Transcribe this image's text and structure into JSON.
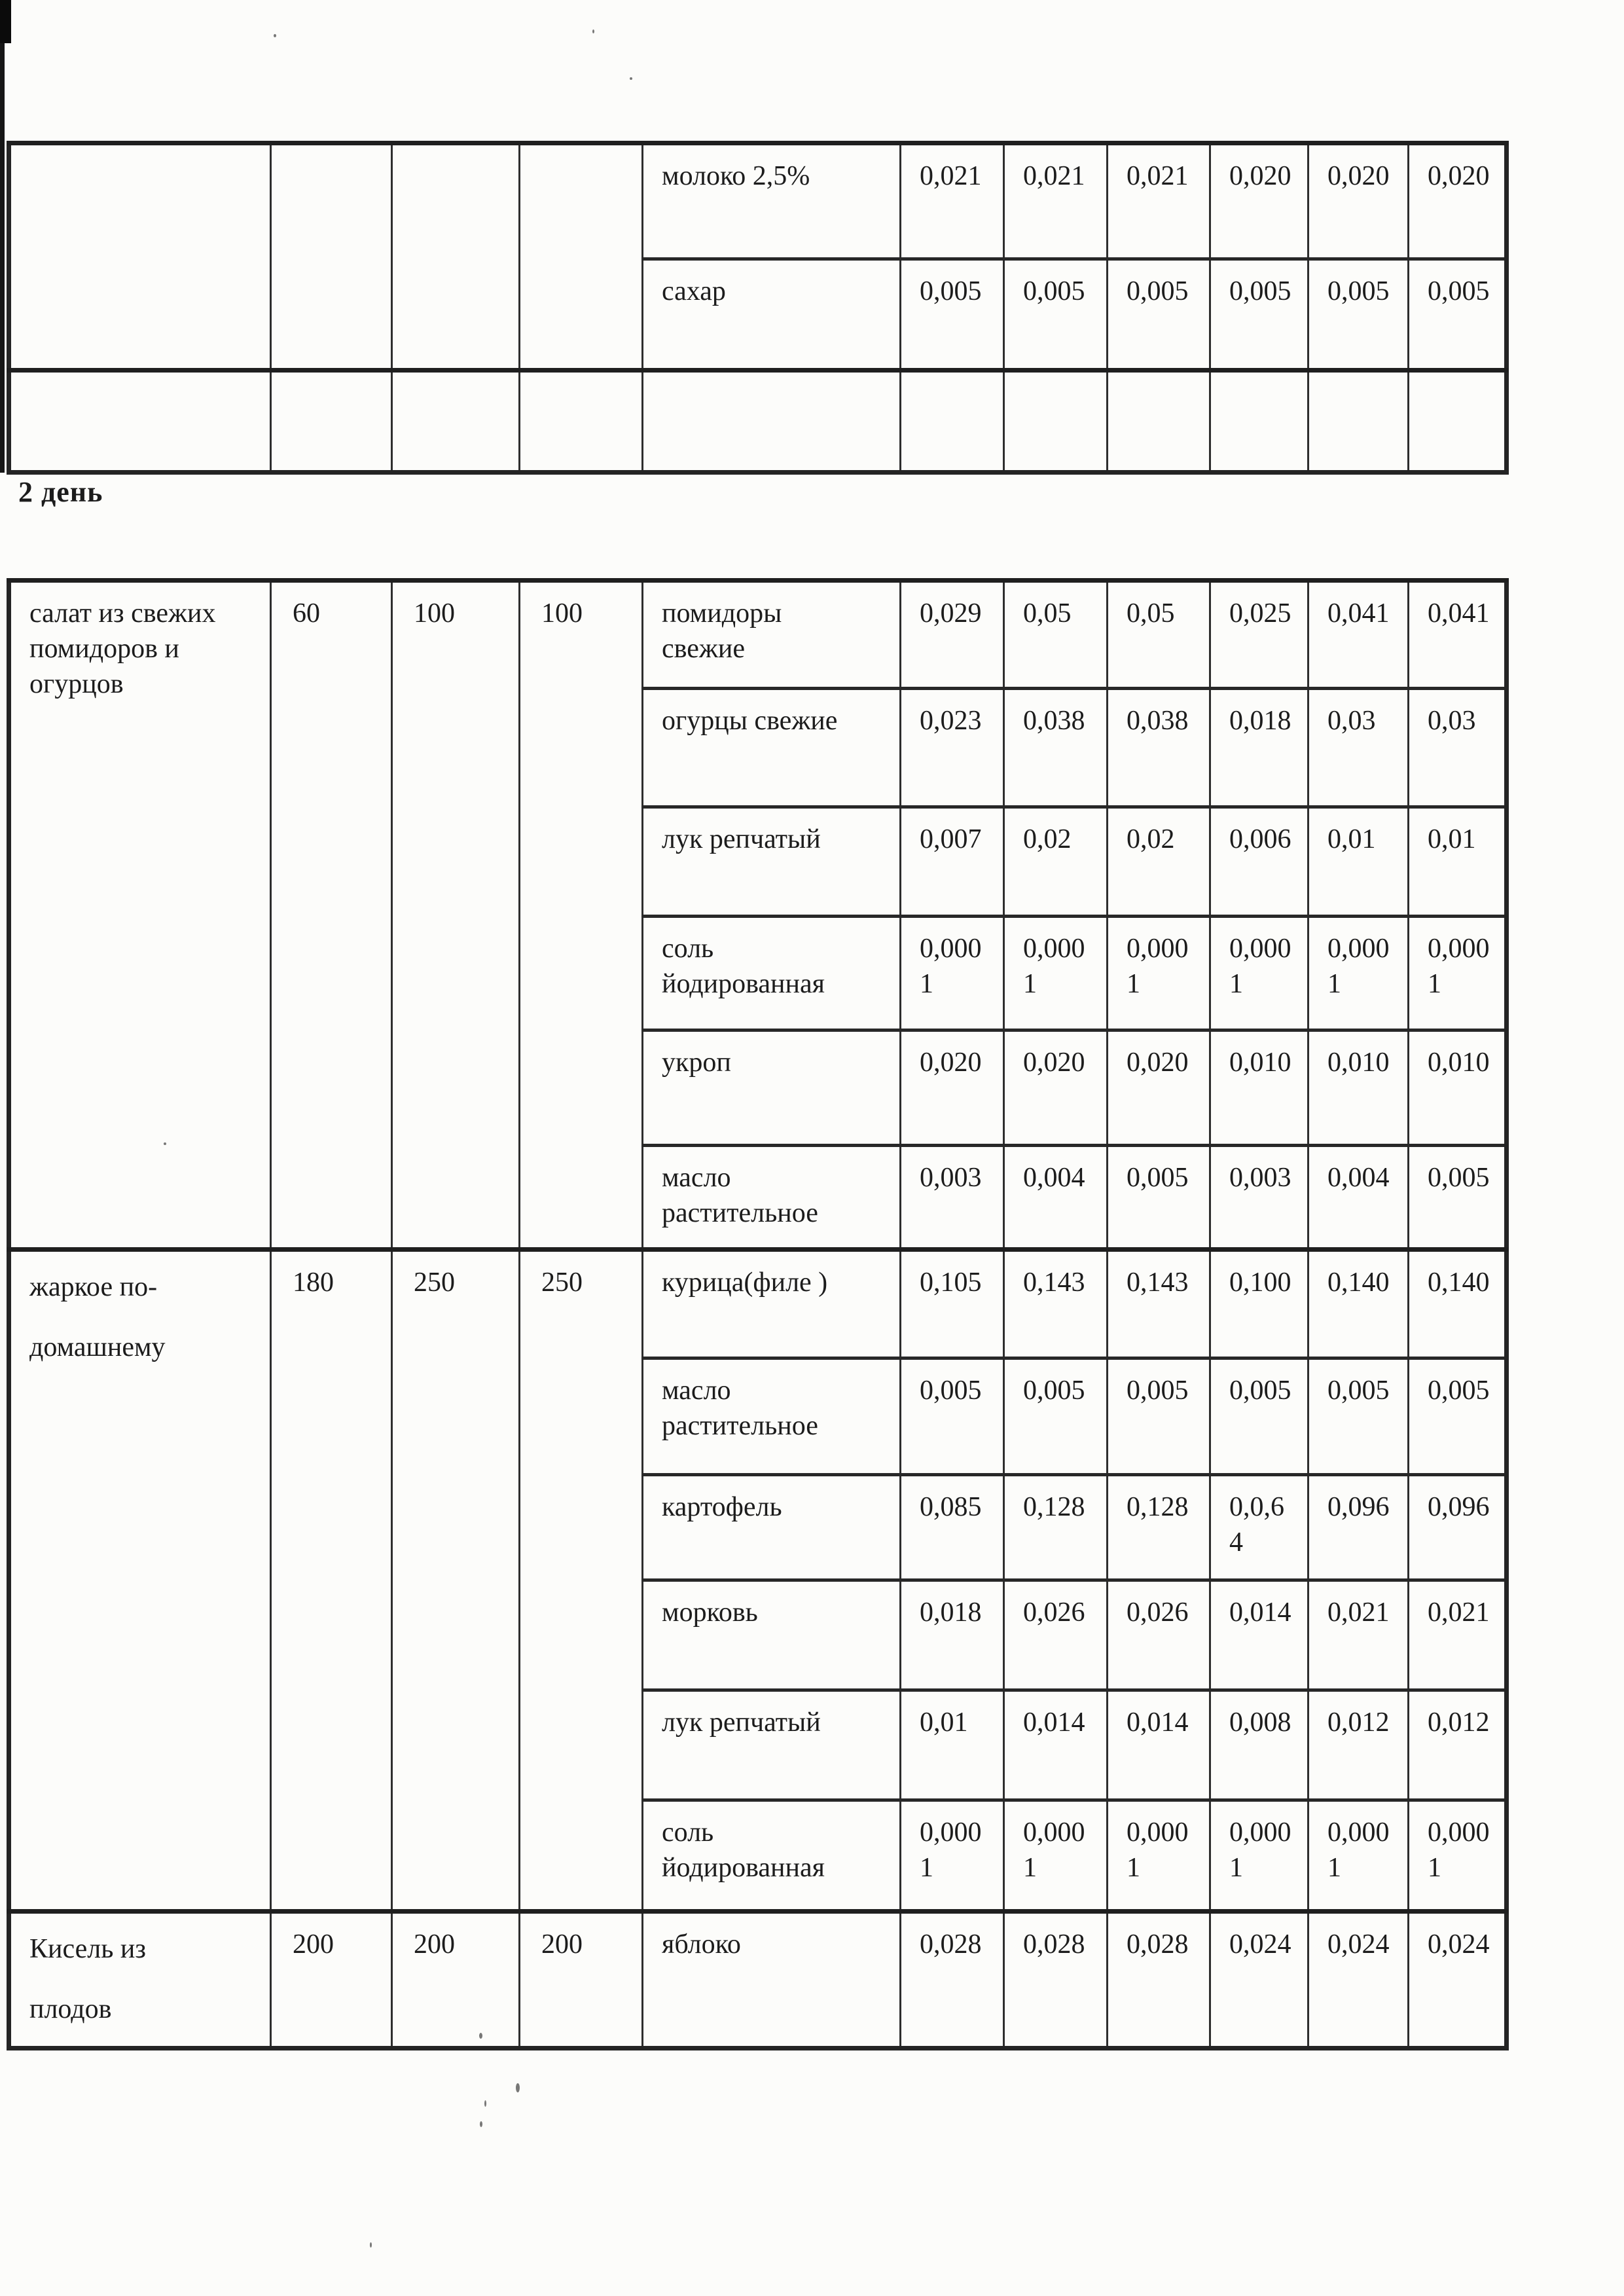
{
  "day_label": "2 день",
  "continuation_table": {
    "dishes": [
      {
        "name": "",
        "portions": [
          "",
          "",
          ""
        ],
        "ingredients": [
          {
            "name": "молоко 2,5%",
            "values": [
              "0,021",
              "0,021",
              "0,021",
              "0,020",
              "0,020",
              "0,020"
            ]
          },
          {
            "name": "сахар",
            "values": [
              "0,005",
              "0,005",
              "0,005",
              "0,005",
              "0,005",
              "0,005"
            ]
          }
        ]
      },
      {
        "name": "",
        "portions": [
          "",
          "",
          ""
        ],
        "ingredients": [
          {
            "name": "",
            "values": [
              "",
              "",
              "",
              "",
              "",
              ""
            ]
          }
        ]
      }
    ]
  },
  "day2_table": {
    "dishes": [
      {
        "name": "салат из свежих помидоров и огурцов",
        "portions": [
          "60",
          "100",
          "100"
        ],
        "ingredients": [
          {
            "name": "помидоры свежие",
            "values": [
              "0,029",
              "0,05",
              "0,05",
              "0,025",
              "0,041",
              "0,041"
            ]
          },
          {
            "name": "огурцы свежие",
            "values": [
              "0,023",
              "0,038",
              "0,038",
              "0,018",
              "0,03",
              "0,03"
            ]
          },
          {
            "name": "лук репчатый",
            "values": [
              "0,007",
              "0,02",
              "0,02",
              "0,006",
              "0,01",
              "0,01"
            ]
          },
          {
            "name": "соль йодированная",
            "values": [
              "0,0001",
              "0,0001",
              "0,0001",
              "0,0001",
              "0,0001",
              "0,0001"
            ]
          },
          {
            "name": "укроп",
            "values": [
              "0,020",
              "0,020",
              "0,020",
              "0,010",
              "0,010",
              "0,010"
            ]
          },
          {
            "name": "масло растительное",
            "values": [
              "0,003",
              "0,004",
              "0,005",
              "0,003",
              "0,004",
              "0,005"
            ]
          }
        ]
      },
      {
        "name": "жаркое по-домашнему",
        "portions": [
          "180",
          "250",
          "250"
        ],
        "ingredients": [
          {
            "name": "курица(филе )",
            "values": [
              "0,105",
              "0,143",
              "0,143",
              "0,100",
              "0,140",
              "0,140"
            ]
          },
          {
            "name": "масло растительное",
            "values": [
              "0,005",
              "0,005",
              "0,005",
              "0,005",
              "0,005",
              "0,005"
            ]
          },
          {
            "name": "картофель",
            "values": [
              "0,085",
              "0,128",
              "0,128",
              "0,0,64",
              "0,096",
              "0,096"
            ]
          },
          {
            "name": "морковь",
            "values": [
              "0,018",
              "0,026",
              "0,026",
              "0,014",
              "0,021",
              "0,021"
            ]
          },
          {
            "name": "лук репчатый",
            "values": [
              "0,01",
              "0,014",
              "0,014",
              "0,008",
              "0,012",
              "0,012"
            ]
          },
          {
            "name": "соль йодированная",
            "values": [
              "0,0001",
              "0,0001",
              "0,0001",
              "0,0001",
              "0,0001",
              "0,0001"
            ]
          }
        ]
      },
      {
        "name": "Кисель из плодов",
        "portions": [
          "200",
          "200",
          "200"
        ],
        "ingredients": [
          {
            "name": "яблоко",
            "values": [
              "0,028",
              "0,028",
              "0,028",
              "0,024",
              "0,024",
              "0,024"
            ]
          }
        ]
      }
    ]
  }
}
